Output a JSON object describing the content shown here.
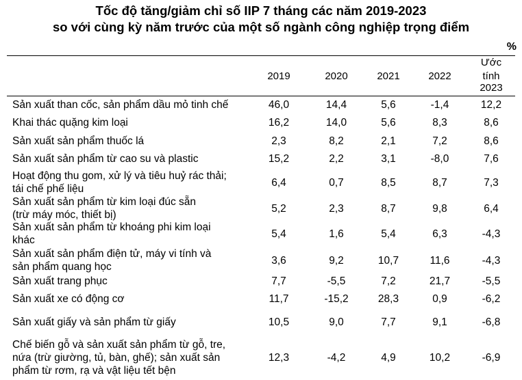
{
  "title_line1": "Tốc độ tăng/giảm chỉ số IIP 7 tháng các năm 2019-2023",
  "title_line2": "so với cùng kỳ năm trước của một số ngành công nghiệp trọng điểm",
  "unit": "%",
  "columns": [
    "2019",
    "2020",
    "2021",
    "2022"
  ],
  "estimate_header": [
    "Ước",
    "tính",
    "2023"
  ],
  "rows": [
    {
      "label": [
        "Sản xuất than cốc, sản phẩm dầu mỏ tinh chế"
      ],
      "values": [
        "46,0",
        "14,4",
        "5,6",
        "-1,4",
        "12,2"
      ]
    },
    {
      "label": [
        "Khai thác quặng kim loại"
      ],
      "values": [
        "16,2",
        "14,0",
        "5,6",
        "8,3",
        "8,6"
      ]
    },
    {
      "label": [
        "Sản xuất sản phẩm thuốc lá"
      ],
      "values": [
        "2,3",
        "8,2",
        "2,1",
        "7,2",
        "8,6"
      ]
    },
    {
      "label": [
        "Sản xuất sản phẩm từ cao su và plastic"
      ],
      "values": [
        "15,2",
        "2,2",
        "3,1",
        "-8,0",
        "7,6"
      ]
    },
    {
      "label": [
        "Hoạt động thu gom, xử lý và tiêu huỷ rác thải;",
        "tái chế phế liệu"
      ],
      "values": [
        "6,4",
        "0,7",
        "8,5",
        "8,7",
        "7,3"
      ]
    },
    {
      "label": [
        "Sản xuất sản phẩm từ kim loại đúc sẵn",
        "(trừ máy móc, thiết bị)"
      ],
      "values": [
        "5,2",
        "2,3",
        "8,7",
        "9,8",
        "6,4"
      ]
    },
    {
      "label": [
        "Sản xuất sản phẩm từ khoáng phi kim loại",
        "khác"
      ],
      "values": [
        "5,4",
        "1,6",
        "5,4",
        "6,3",
        "-4,3"
      ]
    },
    {
      "label": [
        "Sản xuất sản phẩm điện tử, máy vi tính và",
        "sản phẩm quang học"
      ],
      "values": [
        "3,6",
        "9,2",
        "10,7",
        "11,6",
        "-4,3"
      ]
    },
    {
      "label": [
        "Sản xuất trang phục"
      ],
      "values": [
        "7,7",
        "-5,5",
        "7,2",
        "21,7",
        "-5,5"
      ]
    },
    {
      "label": [
        "Sản xuất xe có động cơ"
      ],
      "values": [
        "11,7",
        "-15,2",
        "28,3",
        "0,9",
        "-6,2"
      ]
    },
    {
      "label": [
        "Sản xuất giấy và sản phẩm từ giấy"
      ],
      "values": [
        "10,5",
        "9,0",
        "7,7",
        "9,1",
        "-6,8"
      ]
    },
    {
      "label": [
        "Chế biến gỗ và sản xuất sản phẩm từ gỗ, tre,",
        "nứa (trừ giường, tủ, bàn, ghế); sản xuất sản",
        "phẩm từ rơm, rạ và vật liệu tết bện"
      ],
      "values": [
        "12,3",
        "-4,2",
        "4,9",
        "10,2",
        "-6,9"
      ]
    }
  ]
}
